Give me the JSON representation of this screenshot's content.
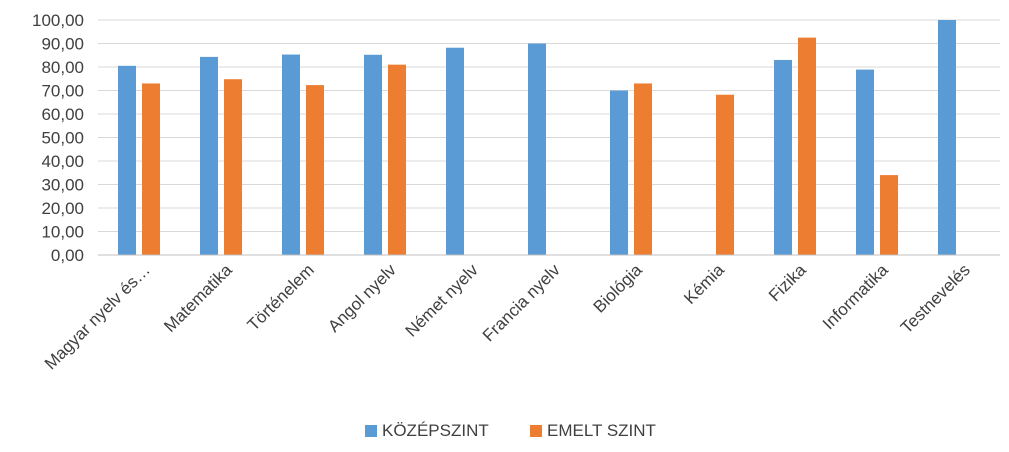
{
  "chart_data": {
    "type": "bar",
    "title": "",
    "xlabel": "",
    "ylabel": "",
    "ylim": [
      0,
      100
    ],
    "ytick_step": 10,
    "ytick_labels": [
      "0,00",
      "10,00",
      "20,00",
      "30,00",
      "40,00",
      "50,00",
      "60,00",
      "70,00",
      "80,00",
      "90,00",
      "100,00"
    ],
    "grid": true,
    "legend_position": "bottom",
    "categories": [
      "Magyar nyelv és…",
      "Matematika",
      "Történelem",
      "Angol nyelv",
      "Német nyelv",
      "Francia nyelv",
      "Biológia",
      "Kémia",
      "Fizika",
      "Informatika",
      "Testnevelés"
    ],
    "series": [
      {
        "name": "KÖZÉPSZINT",
        "color": "#5b9bd5",
        "values": [
          80.5,
          84.3,
          85.3,
          85.2,
          88.2,
          90.0,
          70.0,
          null,
          83.0,
          78.9,
          100.0
        ]
      },
      {
        "name": "EMELT SZINT",
        "color": "#ed7d31",
        "values": [
          73.0,
          74.8,
          72.3,
          81.0,
          null,
          null,
          73.0,
          68.2,
          92.5,
          34.0,
          null
        ]
      }
    ]
  }
}
